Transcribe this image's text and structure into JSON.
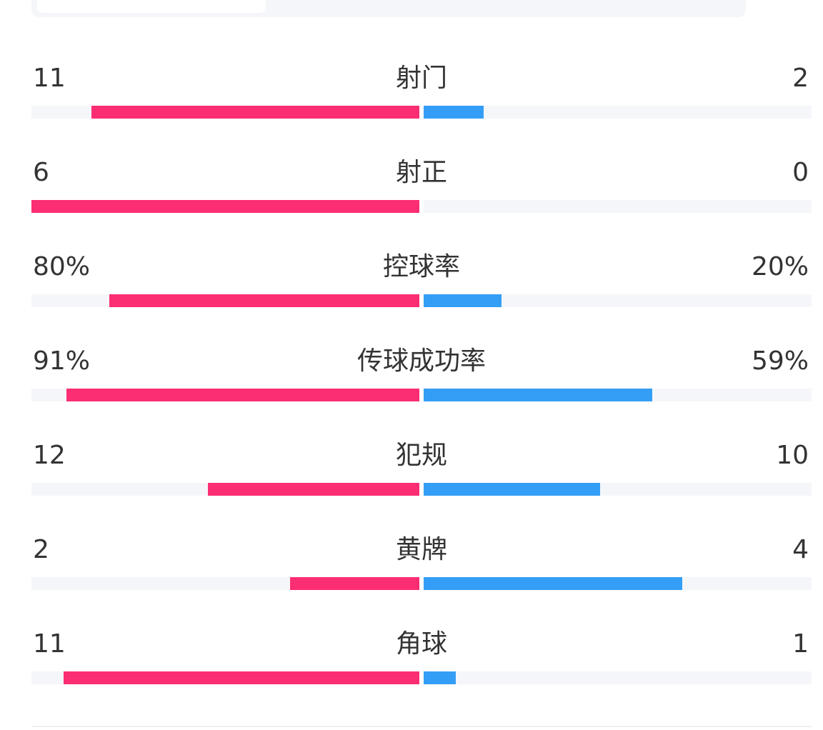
{
  "colors": {
    "home_bar": "#fb2e73",
    "away_bar": "#349ef6",
    "track": "#f5f6f9",
    "text": "#333333"
  },
  "stats": [
    {
      "label": "射门",
      "home": "11",
      "away": "2",
      "home_bar": 0.846,
      "away_bar": 0.154
    },
    {
      "label": "射正",
      "home": "6",
      "away": "0",
      "home_bar": 1.0,
      "away_bar": 0.0
    },
    {
      "label": "控球率",
      "home": "80%",
      "away": "20%",
      "home_bar": 0.8,
      "away_bar": 0.2
    },
    {
      "label": "传球成功率",
      "home": "91%",
      "away": "59%",
      "home_bar": 0.91,
      "away_bar": 0.59
    },
    {
      "label": "犯规",
      "home": "12",
      "away": "10",
      "home_bar": 0.545,
      "away_bar": 0.455
    },
    {
      "label": "黄牌",
      "home": "2",
      "away": "4",
      "home_bar": 0.333,
      "away_bar": 0.667
    },
    {
      "label": "角球",
      "home": "11",
      "away": "1",
      "home_bar": 0.917,
      "away_bar": 0.083
    }
  ]
}
